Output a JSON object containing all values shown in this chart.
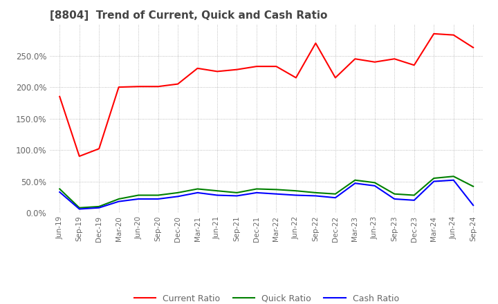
{
  "title": "[8804]  Trend of Current, Quick and Cash Ratio",
  "x_labels": [
    "Jun-19",
    "Sep-19",
    "Dec-19",
    "Mar-20",
    "Jun-20",
    "Sep-20",
    "Dec-20",
    "Mar-21",
    "Jun-21",
    "Sep-21",
    "Dec-21",
    "Mar-22",
    "Jun-22",
    "Sep-22",
    "Dec-22",
    "Mar-23",
    "Jun-23",
    "Sep-23",
    "Dec-23",
    "Mar-24",
    "Jun-24",
    "Sep-24"
  ],
  "current_ratio": [
    185,
    90,
    102,
    200,
    201,
    201,
    205,
    230,
    225,
    228,
    233,
    233,
    215,
    270,
    215,
    245,
    240,
    245,
    235,
    285,
    283,
    263
  ],
  "quick_ratio": [
    38,
    8,
    10,
    22,
    28,
    28,
    32,
    38,
    35,
    32,
    38,
    37,
    35,
    32,
    30,
    52,
    48,
    30,
    28,
    55,
    58,
    42
  ],
  "cash_ratio": [
    33,
    6,
    8,
    18,
    22,
    22,
    26,
    32,
    28,
    27,
    32,
    30,
    28,
    27,
    24,
    47,
    43,
    22,
    20,
    50,
    52,
    12
  ],
  "ylim": [
    0,
    300
  ],
  "yticks": [
    0,
    50,
    100,
    150,
    200,
    250
  ],
  "current_color": "#FF0000",
  "quick_color": "#008000",
  "cash_color": "#0000FF",
  "background_color": "#FFFFFF",
  "plot_bg_color": "#FFFFFF",
  "grid_color": "#AAAAAA",
  "tick_color": "#666666",
  "title_color": "#444444"
}
